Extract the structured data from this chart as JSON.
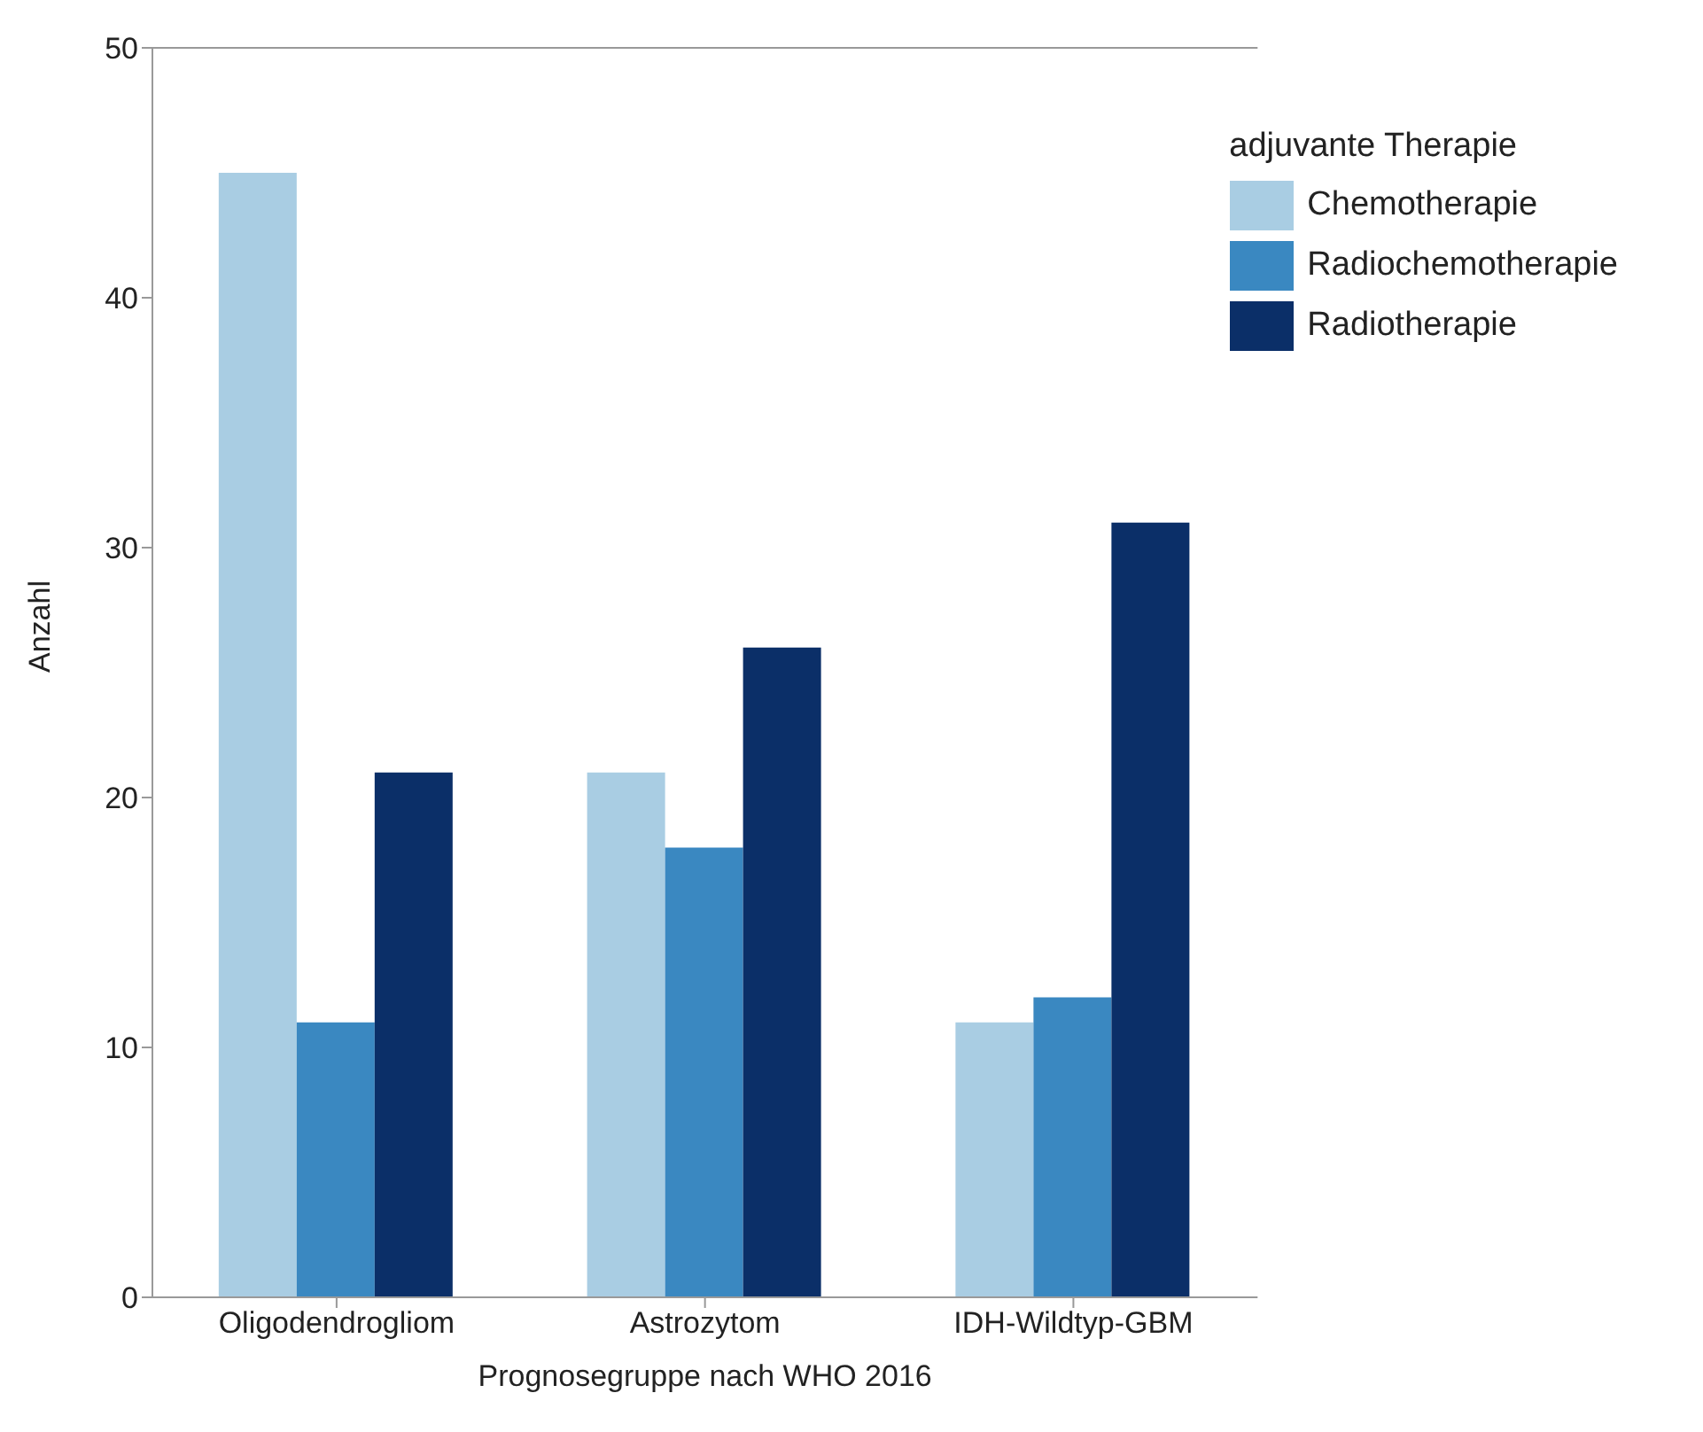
{
  "chart_data": {
    "type": "bar",
    "xlabel": "Prognosegruppe nach WHO 2016",
    "ylabel": "Anzahl",
    "legend_title": "adjuvante Therapie",
    "categories": [
      "Oligodendrogliom",
      "Astrozytom",
      "IDH-Wildtyp-GBM"
    ],
    "series": [
      {
        "name": "Chemotherapie",
        "color": "#a9cde3",
        "values": [
          45,
          21,
          11
        ]
      },
      {
        "name": "Radiochemotherapie",
        "color": "#3a88c1",
        "values": [
          11,
          18,
          12
        ]
      },
      {
        "name": "Radiotherapie",
        "color": "#0b2f68",
        "values": [
          21,
          26,
          31
        ]
      }
    ],
    "ylim": [
      0,
      50
    ],
    "yticks": [
      0,
      10,
      20,
      30,
      40,
      50
    ],
    "grid": false,
    "legend": "top right"
  }
}
